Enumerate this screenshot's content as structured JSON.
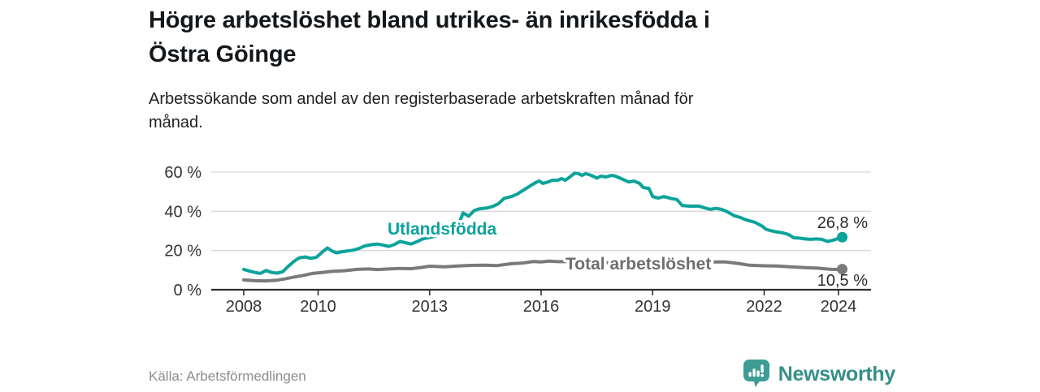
{
  "header": {
    "title": "Högre arbetslöshet bland utrikes- än inrikesfödda i Östra Göinge",
    "title_lines": [
      "Högre arbetslöshet bland utrikes- än inrikesfödda i",
      "Östra Göinge"
    ],
    "subtitle": "Arbetssökande som andel av den registerbaserade arbetskraften månad för månad.",
    "subtitle_lines": [
      "Arbetssökande som andel av den registerbaserade arbetskraften månad för",
      "månad."
    ]
  },
  "footer": {
    "source": "Källa: Arbetsförmedlingen",
    "brand": "Newsworthy",
    "brand_color": "#368f88",
    "logo_icon_color": "#3e9c94",
    "logo_icon": "bar-chart-speech-bubble-icon"
  },
  "chart_data": {
    "type": "line",
    "title": "Högre arbetslöshet bland utrikes- än inrikesfödda i Östra Göinge",
    "subtitle": "Arbetssökande som andel av den registerbaserade arbetskraften månad för månad.",
    "x_axis": {
      "range": [
        2007.1,
        2024.9
      ],
      "ticks": [
        {
          "value": 2008,
          "label": "2008"
        },
        {
          "value": 2010,
          "label": "2010"
        },
        {
          "value": 2013,
          "label": "2013"
        },
        {
          "value": 2016,
          "label": "2016"
        },
        {
          "value": 2019,
          "label": "2019"
        },
        {
          "value": 2022,
          "label": "2022"
        },
        {
          "value": 2024,
          "label": "2024"
        }
      ]
    },
    "y_axis": {
      "unit": "%",
      "range": [
        0,
        62
      ],
      "grid": true,
      "ticks": [
        {
          "value": 0,
          "label": "0 %"
        },
        {
          "value": 20,
          "label": "20 %"
        },
        {
          "value": 40,
          "label": "40 %"
        },
        {
          "value": 60,
          "label": "60 %"
        }
      ]
    },
    "colors": {
      "grid": "#d9d9d9",
      "axis": "#2f2f2f",
      "tick_text": "#333333",
      "value_text": "#2b2b2b"
    },
    "series": [
      {
        "name": "Utlandsfödda",
        "color": "#0ca39b",
        "label_color": "#0ca39b",
        "end_label": "26,8 %",
        "end_value": 26.8,
        "points": [
          [
            2008.0,
            10.4
          ],
          [
            2008.15,
            9.5
          ],
          [
            2008.3,
            8.8
          ],
          [
            2008.45,
            8.3
          ],
          [
            2008.6,
            9.8
          ],
          [
            2008.75,
            8.8
          ],
          [
            2008.9,
            8.5
          ],
          [
            2009.05,
            9.2
          ],
          [
            2009.2,
            12.0
          ],
          [
            2009.35,
            14.5
          ],
          [
            2009.5,
            16.3
          ],
          [
            2009.65,
            16.7
          ],
          [
            2009.8,
            16.0
          ],
          [
            2009.95,
            16.5
          ],
          [
            2010.1,
            19.0
          ],
          [
            2010.25,
            21.3
          ],
          [
            2010.4,
            19.5
          ],
          [
            2010.5,
            18.8
          ],
          [
            2010.65,
            19.4
          ],
          [
            2010.8,
            19.8
          ],
          [
            2010.95,
            20.2
          ],
          [
            2011.1,
            21.0
          ],
          [
            2011.25,
            22.3
          ],
          [
            2011.45,
            23.0
          ],
          [
            2011.6,
            23.3
          ],
          [
            2011.75,
            22.7
          ],
          [
            2011.9,
            22.1
          ],
          [
            2012.05,
            23.0
          ],
          [
            2012.2,
            24.6
          ],
          [
            2012.35,
            24.0
          ],
          [
            2012.5,
            23.3
          ],
          [
            2012.65,
            24.4
          ],
          [
            2012.8,
            25.8
          ],
          [
            2012.95,
            26.5
          ],
          [
            2013.1,
            27.1
          ],
          [
            2013.25,
            27.7
          ],
          [
            2013.4,
            28.5
          ],
          [
            2013.55,
            30.0
          ],
          [
            2013.7,
            31.7
          ],
          [
            2013.8,
            34.0
          ],
          [
            2013.9,
            39.2
          ],
          [
            2014.05,
            37.5
          ],
          [
            2014.2,
            40.4
          ],
          [
            2014.35,
            41.3
          ],
          [
            2014.55,
            41.7
          ],
          [
            2014.7,
            42.5
          ],
          [
            2014.85,
            43.8
          ],
          [
            2015.0,
            46.5
          ],
          [
            2015.2,
            47.5
          ],
          [
            2015.35,
            48.7
          ],
          [
            2015.5,
            50.5
          ],
          [
            2015.7,
            52.9
          ],
          [
            2015.85,
            54.6
          ],
          [
            2015.95,
            55.4
          ],
          [
            2016.05,
            54.2
          ],
          [
            2016.2,
            55.0
          ],
          [
            2016.3,
            55.8
          ],
          [
            2016.45,
            55.8
          ],
          [
            2016.55,
            56.7
          ],
          [
            2016.65,
            55.8
          ],
          [
            2016.8,
            57.9
          ],
          [
            2016.9,
            59.4
          ],
          [
            2017.0,
            59.2
          ],
          [
            2017.1,
            58.3
          ],
          [
            2017.2,
            59.2
          ],
          [
            2017.35,
            58.3
          ],
          [
            2017.5,
            56.9
          ],
          [
            2017.6,
            57.9
          ],
          [
            2017.75,
            57.5
          ],
          [
            2017.9,
            58.3
          ],
          [
            2018.0,
            57.9
          ],
          [
            2018.1,
            57.1
          ],
          [
            2018.25,
            55.8
          ],
          [
            2018.35,
            55.0
          ],
          [
            2018.5,
            55.4
          ],
          [
            2018.65,
            54.2
          ],
          [
            2018.75,
            52.1
          ],
          [
            2018.9,
            51.7
          ],
          [
            2019.0,
            47.5
          ],
          [
            2019.15,
            46.7
          ],
          [
            2019.3,
            47.5
          ],
          [
            2019.5,
            46.5
          ],
          [
            2019.65,
            46.0
          ],
          [
            2019.8,
            42.9
          ],
          [
            2020.0,
            42.6
          ],
          [
            2020.25,
            42.6
          ],
          [
            2020.4,
            41.7
          ],
          [
            2020.55,
            41.0
          ],
          [
            2020.7,
            41.5
          ],
          [
            2020.85,
            41.0
          ],
          [
            2021.0,
            39.8
          ],
          [
            2021.2,
            37.7
          ],
          [
            2021.35,
            36.9
          ],
          [
            2021.5,
            35.7
          ],
          [
            2021.75,
            34.4
          ],
          [
            2021.95,
            32.4
          ],
          [
            2022.05,
            30.8
          ],
          [
            2022.2,
            30.0
          ],
          [
            2022.35,
            29.4
          ],
          [
            2022.5,
            29.0
          ],
          [
            2022.65,
            28.2
          ],
          [
            2022.8,
            26.5
          ],
          [
            2022.95,
            26.3
          ],
          [
            2023.1,
            25.9
          ],
          [
            2023.25,
            25.7
          ],
          [
            2023.4,
            25.9
          ],
          [
            2023.55,
            25.7
          ],
          [
            2023.7,
            24.6
          ],
          [
            2023.85,
            25.2
          ],
          [
            2024.0,
            26.2
          ],
          [
            2024.1,
            26.8
          ]
        ]
      },
      {
        "name": "Total arbetslöshet",
        "color": "#7a7a7a",
        "label_color": "#6e6e6e",
        "end_label": "10,5 %",
        "end_value": 10.5,
        "points": [
          [
            2008.0,
            5.0
          ],
          [
            2008.3,
            4.6
          ],
          [
            2008.6,
            4.5
          ],
          [
            2008.9,
            4.9
          ],
          [
            2009.1,
            5.5
          ],
          [
            2009.3,
            6.3
          ],
          [
            2009.6,
            7.3
          ],
          [
            2009.85,
            8.3
          ],
          [
            2010.1,
            8.8
          ],
          [
            2010.4,
            9.4
          ],
          [
            2010.7,
            9.7
          ],
          [
            2011.05,
            10.4
          ],
          [
            2011.35,
            10.6
          ],
          [
            2011.6,
            10.3
          ],
          [
            2011.9,
            10.6
          ],
          [
            2012.2,
            10.9
          ],
          [
            2012.5,
            10.7
          ],
          [
            2012.8,
            11.4
          ],
          [
            2013.0,
            12.0
          ],
          [
            2013.4,
            11.7
          ],
          [
            2013.75,
            12.1
          ],
          [
            2014.1,
            12.4
          ],
          [
            2014.5,
            12.5
          ],
          [
            2014.8,
            12.3
          ],
          [
            2015.2,
            13.3
          ],
          [
            2015.5,
            13.6
          ],
          [
            2015.8,
            14.4
          ],
          [
            2016.0,
            14.2
          ],
          [
            2016.2,
            14.6
          ],
          [
            2016.45,
            14.3
          ],
          [
            2016.8,
            14.4
          ],
          [
            2017.2,
            14.2
          ],
          [
            2017.6,
            13.9
          ],
          [
            2018.0,
            13.8
          ],
          [
            2018.4,
            13.6
          ],
          [
            2018.8,
            13.4
          ],
          [
            2019.2,
            13.3
          ],
          [
            2019.6,
            13.2
          ],
          [
            2020.0,
            13.8
          ],
          [
            2020.4,
            14.2
          ],
          [
            2020.95,
            14.2
          ],
          [
            2021.3,
            13.4
          ],
          [
            2021.6,
            12.5
          ],
          [
            2022.0,
            12.2
          ],
          [
            2022.35,
            12.1
          ],
          [
            2022.7,
            11.7
          ],
          [
            2023.1,
            11.3
          ],
          [
            2023.45,
            11.0
          ],
          [
            2023.8,
            10.4
          ],
          [
            2024.0,
            10.3
          ],
          [
            2024.1,
            10.5
          ]
        ]
      }
    ],
    "legend_position": "inline-labels"
  }
}
